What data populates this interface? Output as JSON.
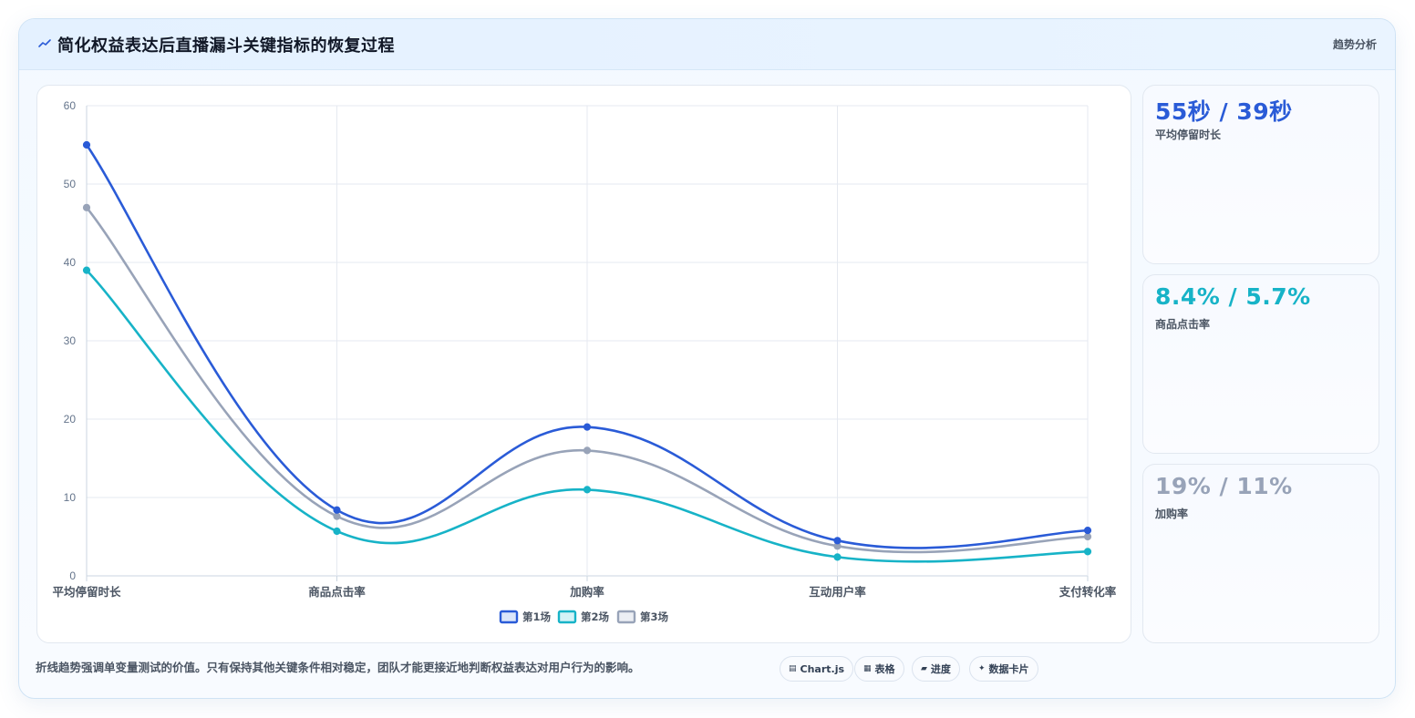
{
  "header": {
    "title": "简化权益表达后直播漏斗关键指标的恢复过程",
    "tag": "趋势分析"
  },
  "colors": {
    "series1": "#2a5bd7",
    "series2": "#17b3c7",
    "series3": "#98a3b8"
  },
  "chart_data": {
    "type": "line",
    "categories": [
      "平均停留时长",
      "商品点击率",
      "加购率",
      "互动用户率",
      "支付转化率"
    ],
    "ylim": [
      0,
      60
    ],
    "yticks": [
      "0",
      "10",
      "20",
      "30",
      "40",
      "50",
      "60"
    ],
    "grid": true,
    "legend_position": "bottom",
    "series": [
      {
        "name": "第1场",
        "values": [
          55,
          8.4,
          19,
          4.5,
          5.8
        ]
      },
      {
        "name": "第2场",
        "values": [
          39,
          5.7,
          11,
          2.4,
          3.1
        ]
      },
      {
        "name": "第3场",
        "values": [
          47,
          7.6,
          16,
          3.8,
          5.0
        ]
      }
    ]
  },
  "stats": [
    {
      "value": "55秒 / 39秒",
      "label": "平均停留时长",
      "color": "#2a5bd7"
    },
    {
      "value": "8.4% / 5.7%",
      "label": "商品点击率",
      "color": "#17b3c7"
    },
    {
      "value": "19% / 11%",
      "label": "加购率",
      "color": "#98a3b8"
    }
  ],
  "footer": {
    "note": "折线趋势强调单变量测试的价值。只有保持其他关键条件相对稳定，团队才能更接近地判断权益表达对用户行为的影响。",
    "chips": [
      {
        "icon": "chart-icon",
        "label": "Chart.js"
      },
      {
        "icon": "table-icon",
        "label": "表格"
      },
      {
        "icon": "progress-icon",
        "label": "进度"
      },
      {
        "icon": "sparkle-icon",
        "label": "数据卡片"
      }
    ]
  }
}
